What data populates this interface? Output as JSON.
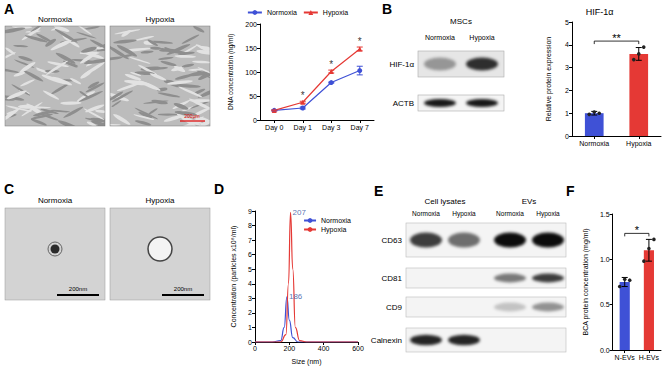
{
  "panel_labels": [
    "A",
    "B",
    "C",
    "D",
    "E",
    "F"
  ],
  "panel_A_images": {
    "labels": [
      "Normoxia",
      "Hypoxia"
    ],
    "scale_bar": "200μm"
  },
  "panel_C_images": {
    "labels": [
      "Normoxia",
      "Hypoxia"
    ],
    "scale_bar": "200nm"
  },
  "blot_B": {
    "title": "MSCs",
    "lanes": [
      "Normoxia",
      "Hypoxia"
    ],
    "rows": [
      {
        "label": "HIF-1α",
        "intensity": [
          0.35,
          0.8
        ]
      },
      {
        "label": "ACTB",
        "intensity": [
          0.9,
          0.9
        ]
      }
    ]
  },
  "blot_E": {
    "groups": [
      {
        "label": "Cell lysates",
        "lanes": [
          "Normoxia",
          "Hypoxia"
        ]
      },
      {
        "label": "EVs",
        "lanes": [
          "Normoxia",
          "Hypoxia"
        ]
      }
    ],
    "rows": [
      {
        "label": "CD63",
        "intensity": [
          0.75,
          0.55,
          0.95,
          0.95
        ]
      },
      {
        "label": "CD81",
        "intensity": [
          0,
          0,
          0.5,
          0.75
        ]
      },
      {
        "label": "CD9",
        "intensity": [
          0,
          0,
          0.2,
          0.4
        ]
      },
      {
        "label": "Calnexin",
        "intensity": [
          0.85,
          0.85,
          0,
          0
        ]
      }
    ]
  },
  "chart_data": [
    {
      "type": "line",
      "y_label": "DNA concentration (ng/ml)",
      "categories": [
        "Day 0",
        "Day 1",
        "Day 3",
        "Day 7"
      ],
      "ylim": [
        0,
        200
      ],
      "yticks": [
        0,
        50,
        100,
        150,
        200
      ],
      "legend": "top",
      "series": [
        {
          "name": "Normoxia",
          "color": "#3f51d6",
          "marker": "circle",
          "values": [
            20,
            25,
            78,
            103
          ],
          "errors": [
            1,
            2,
            1,
            9
          ]
        },
        {
          "name": "Hypoxia",
          "color": "#e53935",
          "marker": "triangle",
          "values": [
            20,
            37,
            101,
            148
          ],
          "errors": [
            1,
            2,
            3,
            4
          ]
        }
      ],
      "annotations": [
        {
          "category": "Day 1",
          "text": "*"
        },
        {
          "category": "Day 3",
          "text": "*"
        },
        {
          "category": "Day 7",
          "text": "*"
        }
      ]
    },
    {
      "type": "bar",
      "title": "HIF-1α",
      "y_label": "Relative protein expression",
      "categories": [
        "Normoxia",
        "Hypoxia"
      ],
      "values": [
        1.0,
        3.6
      ],
      "colors": [
        "#3f51d6",
        "#e53935"
      ],
      "errors": [
        0.08,
        0.28
      ],
      "points": [
        [
          0.95,
          1.05,
          1.0
        ],
        [
          3.35,
          3.6,
          3.9
        ]
      ],
      "ylim": [
        0,
        5
      ],
      "yticks": [
        0,
        1,
        2,
        3,
        4,
        5
      ],
      "annotations": [
        {
          "text": "**"
        }
      ]
    },
    {
      "type": "line",
      "x_label": "Size (nm)",
      "y_label": "Concentration (particles x10⁸/ml)",
      "xlim": [
        0,
        600
      ],
      "xticks": [
        0,
        200,
        400,
        600
      ],
      "ylim": [
        0,
        9
      ],
      "yticks": [
        0,
        1,
        2,
        3,
        4,
        5,
        6,
        7,
        8,
        9
      ],
      "legend": "top-right",
      "series": [
        {
          "name": "Normoxia",
          "color": "#3f51d6",
          "x": [
            0,
            100,
            150,
            170,
            186,
            200,
            220,
            250,
            600
          ],
          "values": [
            0,
            0,
            0.1,
            1.0,
            3.1,
            1.5,
            0.3,
            0,
            0
          ]
        },
        {
          "name": "Hypoxia",
          "color": "#e53935",
          "x": [
            0,
            150,
            180,
            195,
            207,
            220,
            235,
            260,
            300,
            600
          ],
          "values": [
            0,
            0,
            0.5,
            4.0,
            8.9,
            5.0,
            1.0,
            0.1,
            0,
            0
          ]
        }
      ],
      "annotations": [
        {
          "x": 207,
          "y": 8.9,
          "text": "207"
        },
        {
          "x": 186,
          "y": 3.1,
          "text": "186"
        }
      ]
    },
    {
      "type": "bar",
      "y_label": "BCA protein concentration (mg/ml)",
      "categories": [
        "N-EVs",
        "H-EVs"
      ],
      "values": [
        0.75,
        1.1
      ],
      "colors": [
        "#3f51d6",
        "#e53935"
      ],
      "errors": [
        0.05,
        0.12
      ],
      "points": [
        [
          0.7,
          0.78,
          0.77
        ],
        [
          0.98,
          1.12,
          1.22
        ]
      ],
      "ylim": [
        0,
        1.5
      ],
      "yticks": [
        {
          "value": 0,
          "label": "0.0"
        },
        {
          "value": 0.5,
          "label": "0.5"
        },
        {
          "value": 1,
          "label": "1.0"
        },
        {
          "value": 1.5,
          "label": "1.5"
        }
      ],
      "annotations": [
        {
          "text": "*"
        }
      ]
    }
  ]
}
